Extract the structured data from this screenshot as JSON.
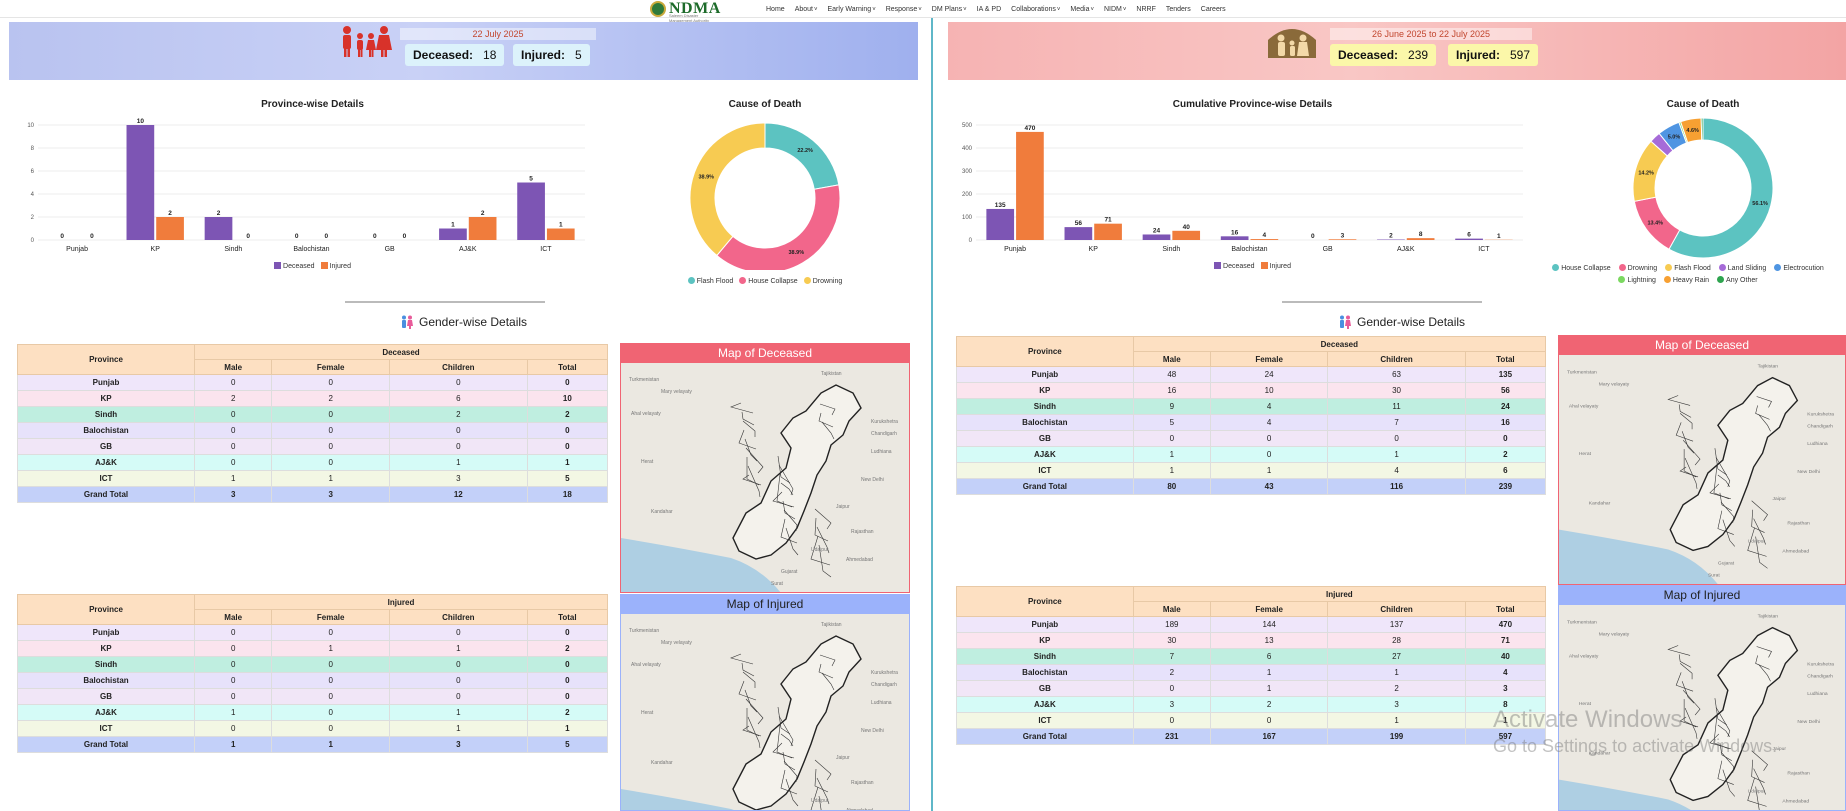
{
  "nav": {
    "logo_text": "NDMA",
    "logo_subtitle": "Saleem Disaster Management Authority",
    "items": [
      {
        "label": "Home",
        "caret": false
      },
      {
        "label": "About",
        "caret": true
      },
      {
        "label": "Early Warning",
        "caret": true
      },
      {
        "label": "Response",
        "caret": true
      },
      {
        "label": "DM Plans",
        "caret": true
      },
      {
        "label": "IA & PD",
        "caret": false
      },
      {
        "label": "Collaborations",
        "caret": true
      },
      {
        "label": "Media",
        "caret": true
      },
      {
        "label": "NIDM",
        "caret": true
      },
      {
        "label": "NRRF",
        "caret": false
      },
      {
        "label": "Tenders",
        "caret": false
      },
      {
        "label": "Careers",
        "caret": false
      }
    ]
  },
  "left": {
    "banner": {
      "date": "22 July 2025",
      "deceased_label": "Deceased:",
      "deceased": "18",
      "injured_label": "Injured:",
      "injured": "5"
    },
    "bar_title": "Province-wise Details",
    "donut_title": "Cause of Death",
    "gender_title": "Gender-wise Details",
    "map_deceased_title": "Map of Deceased",
    "map_injured_title": "Map of Injured"
  },
  "right": {
    "banner": {
      "date": "26 June 2025 to 22 July 2025",
      "deceased_label": "Deceased:",
      "deceased": "239",
      "injured_label": "Injured:",
      "injured": "597"
    },
    "bar_title": "Cumulative Province-wise Details",
    "donut_title": "Cause of Death",
    "gender_title": "Gender-wise Details",
    "map_deceased_title": "Map of Deceased",
    "map_injured_title": "Map of Injured"
  },
  "chart_data": [
    {
      "type": "bar",
      "title": "Province-wise Details",
      "categories": [
        "Punjab",
        "KP",
        "Sindh",
        "Balochistan",
        "GB",
        "AJ&K",
        "ICT"
      ],
      "series": [
        {
          "name": "Deceased",
          "values": [
            0,
            10,
            2,
            0,
            0,
            1,
            5
          ],
          "color": "#7d55b4"
        },
        {
          "name": "Injured",
          "values": [
            0,
            2,
            0,
            0,
            0,
            2,
            1
          ],
          "color": "#f07c3c"
        }
      ],
      "ylim": [
        0,
        10
      ],
      "yticks": [
        0,
        2,
        4,
        6,
        8,
        10
      ],
      "legend": "bottom"
    },
    {
      "type": "pie",
      "title": "Cause of Death",
      "labels": [
        "Flash Flood",
        "House Collapse",
        "Drowning"
      ],
      "values": [
        22.2,
        38.9,
        38.9
      ],
      "colors": [
        "#5cc3c1",
        "#f2668b",
        "#f7cb52"
      ],
      "legend": "bottom"
    },
    {
      "type": "bar",
      "title": "Cumulative Province-wise Details",
      "categories": [
        "Punjab",
        "KP",
        "Sindh",
        "Balochistan",
        "GB",
        "AJ&K",
        "ICT"
      ],
      "series": [
        {
          "name": "Deceased",
          "values": [
            135,
            56,
            24,
            16,
            0,
            2,
            6
          ],
          "color": "#7d55b4"
        },
        {
          "name": "Injured",
          "values": [
            470,
            71,
            40,
            4,
            3,
            8,
            1
          ],
          "color": "#f07c3c"
        }
      ],
      "ylim": [
        0,
        500
      ],
      "yticks": [
        0,
        100,
        200,
        300,
        400,
        500
      ],
      "legend": "bottom"
    },
    {
      "type": "pie",
      "title": "Cause of Death",
      "labels": [
        "House Collapse",
        "Drowning",
        "Flash Flood",
        "Land Sliding",
        "Electrocution",
        "Lightning",
        "Heavy Rain",
        "Any Other"
      ],
      "values": [
        56.1,
        13.4,
        14.2,
        2.5,
        5.0,
        0.4,
        4.6,
        0.4
      ],
      "display_labels": [
        "56.1%",
        "13.4%",
        "14.2%",
        "",
        "5.0%",
        "",
        "4.6%",
        ""
      ],
      "colors": [
        "#5cc3c1",
        "#f2668b",
        "#f7cb52",
        "#a66bd8",
        "#4f95e2",
        "#7bd860",
        "#f7a032",
        "#2ea44f"
      ],
      "legend": "bottom"
    }
  ],
  "tables": {
    "headers": {
      "province": "Province",
      "male": "Male",
      "female": "Female",
      "children": "Children",
      "total": "Total"
    },
    "left_deceased": {
      "group": "Deceased",
      "rows": [
        {
          "province": "Punjab",
          "male": "0",
          "female": "0",
          "children": "0",
          "total": "0",
          "color": "#efe6fa"
        },
        {
          "province": "KP",
          "male": "2",
          "female": "2",
          "children": "6",
          "total": "10",
          "color": "#fbe4ee"
        },
        {
          "province": "Sindh",
          "male": "0",
          "female": "0",
          "children": "2",
          "total": "2",
          "color": "#bfeee0"
        },
        {
          "province": "Balochistan",
          "male": "0",
          "female": "0",
          "children": "0",
          "total": "0",
          "color": "#e7e2fb"
        },
        {
          "province": "GB",
          "male": "0",
          "female": "0",
          "children": "0",
          "total": "0",
          "color": "#f1e6f7"
        },
        {
          "province": "AJ&K",
          "male": "0",
          "female": "0",
          "children": "1",
          "total": "1",
          "color": "#d5fbf7"
        },
        {
          "province": "ICT",
          "male": "1",
          "female": "1",
          "children": "3",
          "total": "5",
          "color": "#f3f7e4"
        },
        {
          "province": "Grand Total",
          "male": "3",
          "female": "3",
          "children": "12",
          "total": "18",
          "color": "#c3d0f9"
        }
      ]
    },
    "left_injured": {
      "group": "Injured",
      "rows": [
        {
          "province": "Punjab",
          "male": "0",
          "female": "0",
          "children": "0",
          "total": "0",
          "color": "#efe6fa"
        },
        {
          "province": "KP",
          "male": "0",
          "female": "1",
          "children": "1",
          "total": "2",
          "color": "#fbe4ee"
        },
        {
          "province": "Sindh",
          "male": "0",
          "female": "0",
          "children": "0",
          "total": "0",
          "color": "#bfeee0"
        },
        {
          "province": "Balochistan",
          "male": "0",
          "female": "0",
          "children": "0",
          "total": "0",
          "color": "#e7e2fb"
        },
        {
          "province": "GB",
          "male": "0",
          "female": "0",
          "children": "0",
          "total": "0",
          "color": "#f1e6f7"
        },
        {
          "province": "AJ&K",
          "male": "1",
          "female": "0",
          "children": "1",
          "total": "2",
          "color": "#d5fbf7"
        },
        {
          "province": "ICT",
          "male": "0",
          "female": "0",
          "children": "1",
          "total": "1",
          "color": "#f3f7e4"
        },
        {
          "province": "Grand Total",
          "male": "1",
          "female": "1",
          "children": "3",
          "total": "5",
          "color": "#c3d0f9"
        }
      ]
    },
    "right_deceased": {
      "group": "Deceased",
      "rows": [
        {
          "province": "Punjab",
          "male": "48",
          "female": "24",
          "children": "63",
          "total": "135",
          "color": "#efe6fa"
        },
        {
          "province": "KP",
          "male": "16",
          "female": "10",
          "children": "30",
          "total": "56",
          "color": "#fbe4ee"
        },
        {
          "province": "Sindh",
          "male": "9",
          "female": "4",
          "children": "11",
          "total": "24",
          "color": "#bfeee0"
        },
        {
          "province": "Balochistan",
          "male": "5",
          "female": "4",
          "children": "7",
          "total": "16",
          "color": "#e7e2fb"
        },
        {
          "province": "GB",
          "male": "0",
          "female": "0",
          "children": "0",
          "total": "0",
          "color": "#f1e6f7"
        },
        {
          "province": "AJ&K",
          "male": "1",
          "female": "0",
          "children": "1",
          "total": "2",
          "color": "#d5fbf7"
        },
        {
          "province": "ICT",
          "male": "1",
          "female": "1",
          "children": "4",
          "total": "6",
          "color": "#f3f7e4"
        },
        {
          "province": "Grand Total",
          "male": "80",
          "female": "43",
          "children": "116",
          "total": "239",
          "color": "#c3d0f9"
        }
      ]
    },
    "right_injured": {
      "group": "Injured",
      "rows": [
        {
          "province": "Punjab",
          "male": "189",
          "female": "144",
          "children": "137",
          "total": "470",
          "color": "#efe6fa"
        },
        {
          "province": "KP",
          "male": "30",
          "female": "13",
          "children": "28",
          "total": "71",
          "color": "#fbe4ee"
        },
        {
          "province": "Sindh",
          "male": "7",
          "female": "6",
          "children": "27",
          "total": "40",
          "color": "#bfeee0"
        },
        {
          "province": "Balochistan",
          "male": "2",
          "female": "1",
          "children": "1",
          "total": "4",
          "color": "#e7e2fb"
        },
        {
          "province": "GB",
          "male": "0",
          "female": "1",
          "children": "2",
          "total": "3",
          "color": "#f1e6f7"
        },
        {
          "province": "AJ&K",
          "male": "3",
          "female": "2",
          "children": "3",
          "total": "8",
          "color": "#d5fbf7"
        },
        {
          "province": "ICT",
          "male": "0",
          "female": "0",
          "children": "1",
          "total": "1",
          "color": "#f3f7e4"
        },
        {
          "province": "Grand Total",
          "male": "231",
          "female": "167",
          "children": "199",
          "total": "597",
          "color": "#c3d0f9"
        }
      ]
    }
  },
  "map_labels": [
    "Turkmenistan",
    "Mary velayaty",
    "Ahal velayaty",
    "Tajikistan",
    "Herat",
    "Kandahar",
    "Ludhiana",
    "New Delhi",
    "Jaipur",
    "Udaipur",
    "Gujarat",
    "Ahmedabad",
    "Rajasthan",
    "Kurukshetra",
    "Chandigarh",
    "Surat"
  ],
  "colors": {
    "deceased_header": "#f06473",
    "injured_header": "#9bb2fb",
    "divider": "#5fb7c8"
  },
  "watermark": {
    "line1": "Activate Windows",
    "line2": "Go to Settings to activate Windows."
  }
}
